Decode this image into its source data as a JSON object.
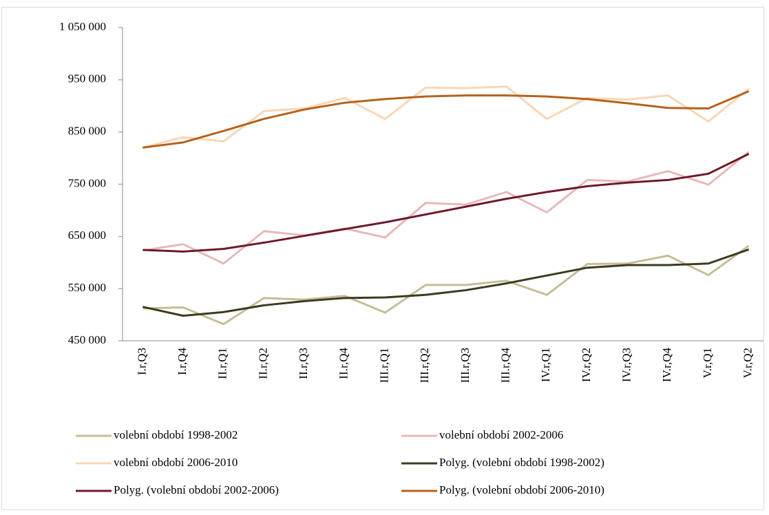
{
  "chart_data": {
    "type": "line",
    "categories": [
      "I.r,Q3",
      "I.r,Q4",
      "II.r,Q1",
      "II.r,Q2",
      "II.r,Q3",
      "II.r,Q4",
      "III.r,Q1",
      "III.r,Q2",
      "III.r,Q3",
      "III.r,Q4",
      "IV.r,Q1",
      "IV.r,Q2",
      "IV.r,Q3",
      "IV.r,Q4",
      "V.r,Q1",
      "V.r,Q2"
    ],
    "ylim": [
      450000,
      1050000
    ],
    "yticks": [
      {
        "value": 450000,
        "label": "450 000"
      },
      {
        "value": 550000,
        "label": "550 000"
      },
      {
        "value": 650000,
        "label": "650 000"
      },
      {
        "value": 750000,
        "label": "750 000"
      },
      {
        "value": 850000,
        "label": "850 000"
      },
      {
        "value": 950000,
        "label": "950 000"
      },
      {
        "value": 1050000,
        "label": "1 050 000"
      }
    ],
    "grid": false,
    "series": [
      {
        "name": "volební období 1998-2002",
        "color": "#c4bd97",
        "values": [
          512000,
          514000,
          482000,
          532000,
          529000,
          536000,
          504000,
          557000,
          557000,
          565000,
          538000,
          597000,
          598000,
          613000,
          576000,
          632000
        ]
      },
      {
        "name": "volební období 2002-2006",
        "color": "#e6b9b8",
        "values": [
          623000,
          635000,
          598000,
          660000,
          652000,
          665000,
          648000,
          714000,
          711000,
          735000,
          696000,
          758000,
          755000,
          775000,
          749000,
          812000
        ]
      },
      {
        "name": "volební období 2006-2010",
        "color": "#fcd5b4",
        "values": [
          820000,
          840000,
          832000,
          890000,
          895000,
          915000,
          875000,
          935000,
          934000,
          937000,
          875000,
          915000,
          912000,
          920000,
          870000,
          933000
        ]
      },
      {
        "name": "Polyg. (volební období 1998-2002)",
        "color": "#3b3b20",
        "values": [
          515000,
          498000,
          505000,
          518000,
          526000,
          532000,
          533000,
          538000,
          547000,
          560000,
          575000,
          590000,
          595000,
          595000,
          598000,
          625000
        ]
      },
      {
        "name": "Polyg. (volební období 2002-2006)",
        "color": "#6e1a2a",
        "values": [
          624000,
          621000,
          626000,
          638000,
          651000,
          664000,
          677000,
          692000,
          707000,
          722000,
          735000,
          746000,
          753000,
          758000,
          770000,
          808000
        ]
      },
      {
        "name": "Polyg. (volební období 2006-2010)",
        "color": "#b5611c",
        "values": [
          820000,
          830000,
          852000,
          875000,
          893000,
          906000,
          913000,
          918000,
          920000,
          920000,
          918000,
          913000,
          905000,
          896000,
          895000,
          928000
        ]
      }
    ]
  }
}
